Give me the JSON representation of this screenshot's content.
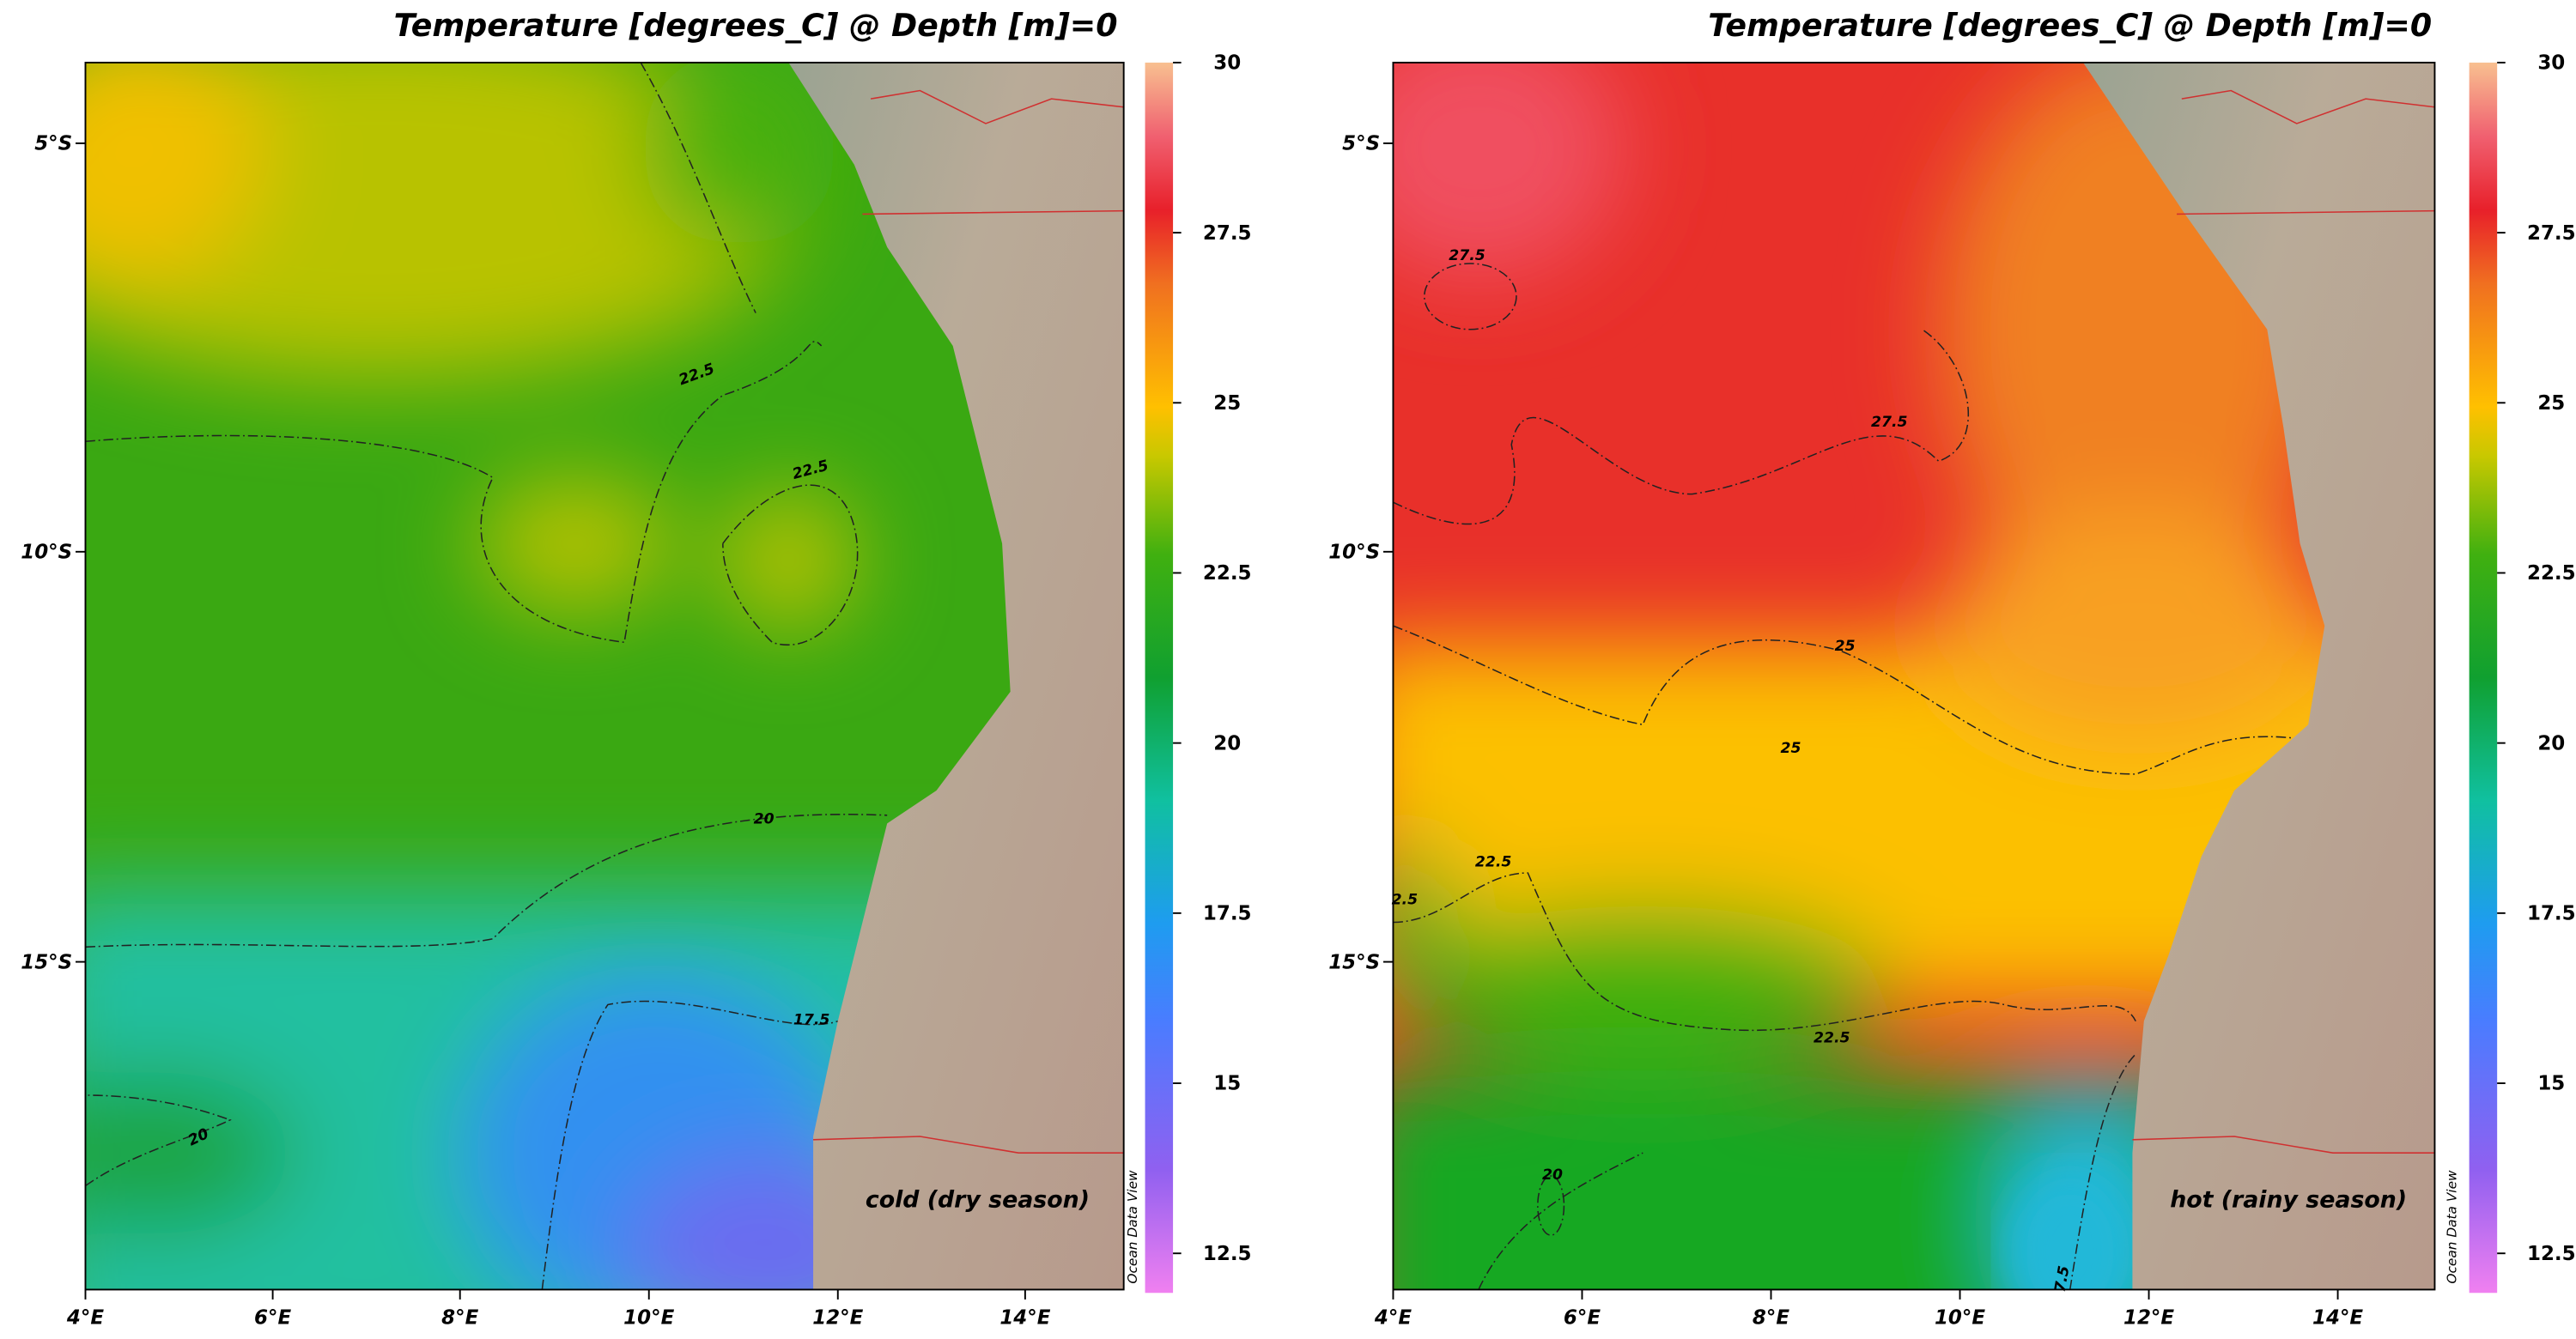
{
  "maps": [
    {
      "title": "Temperature [degrees_C] @ Depth [m]=0",
      "annotation": "cold (dry season)",
      "watermark": "Ocean Data View",
      "lon_labels": [
        "4°E",
        "6°E",
        "8°E",
        "10°E",
        "12°E",
        "14°E"
      ],
      "lat_labels": [
        "5°S",
        "10°S",
        "15°S"
      ],
      "colorbar_labels": [
        30,
        27.5,
        25,
        22.5,
        20,
        17.5,
        15,
        12.5
      ],
      "contour_labels": [
        "22.5",
        "22.5",
        "20",
        "17.5",
        "20"
      ]
    },
    {
      "title": "Temperature [degrees_C] @ Depth [m]=0",
      "annotation": "hot (rainy season)",
      "watermark": "Ocean Data View",
      "lon_labels": [
        "4°E",
        "6°E",
        "8°E",
        "10°E",
        "12°E",
        "14°E"
      ],
      "lat_labels": [
        "5°S",
        "10°S",
        "15°S"
      ],
      "colorbar_labels": [
        30,
        27.5,
        25,
        22.5,
        20,
        17.5,
        15,
        12.5
      ],
      "contour_labels": [
        "27.5",
        "27.5",
        "25",
        "25",
        "22.5",
        "2.5",
        "22.5",
        "20",
        "7.5"
      ]
    }
  ]
}
